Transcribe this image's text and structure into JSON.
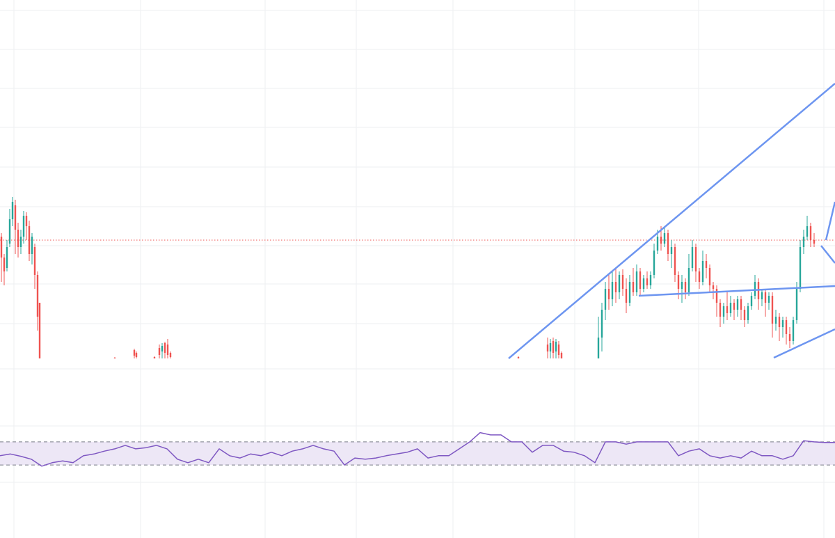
{
  "chart_data": [
    {
      "type": "candlestick",
      "x": [
        2,
        6,
        10,
        14,
        18,
        22,
        26,
        30,
        34,
        38,
        42,
        46,
        50,
        54,
        57,
        165,
        193,
        196,
        222,
        229,
        233,
        237,
        241,
        245,
        745,
        787,
        791,
        795,
        799,
        803,
        807,
        860,
        865,
        870,
        875,
        880,
        885,
        890,
        895,
        900,
        905,
        910,
        915,
        920,
        925,
        930,
        935,
        940,
        945,
        950,
        955,
        960,
        965,
        970,
        975,
        980,
        985,
        990,
        995,
        1000,
        1005,
        1010,
        1015,
        1020,
        1025,
        1030,
        1035,
        1040,
        1045,
        1050,
        1055,
        1060,
        1065,
        1070,
        1075,
        1080,
        1085,
        1090,
        1095,
        1100,
        1105,
        1110,
        1115,
        1120,
        1125,
        1130,
        1135,
        1140,
        1145,
        1150,
        1155,
        1160,
        1165,
        1170
      ],
      "open": [
        175,
        145,
        130,
        165,
        200,
        220,
        185,
        160,
        175,
        205,
        190,
        150,
        160,
        120,
        80,
        1,
        12,
        8,
        2,
        15,
        10,
        22,
        20,
        8,
        2,
        20,
        10,
        25,
        10,
        20,
        8,
        0,
        30,
        70,
        100,
        85,
        110,
        95,
        120,
        100,
        80,
        110,
        95,
        125,
        100,
        115,
        105,
        120,
        155,
        175,
        165,
        180,
        150,
        160,
        120,
        100,
        110,
        95,
        130,
        160,
        125,
        110,
        140,
        130,
        105,
        100,
        80,
        60,
        75,
        65,
        80,
        70,
        85,
        70,
        55,
        75,
        90,
        110,
        85,
        95,
        80,
        90,
        50,
        60,
        45,
        55,
        35,
        25,
        55,
        100,
        160,
        175,
        190,
        170
      ],
      "high": [
        180,
        150,
        170,
        215,
        232,
        228,
        195,
        185,
        212,
        210,
        198,
        180,
        165,
        125,
        80,
        2,
        14,
        10,
        3,
        20,
        22,
        24,
        28,
        10,
        3,
        30,
        28,
        30,
        28,
        25,
        10,
        60,
        80,
        110,
        120,
        125,
        130,
        125,
        128,
        115,
        120,
        130,
        135,
        130,
        120,
        125,
        125,
        165,
        185,
        190,
        190,
        185,
        170,
        165,
        125,
        120,
        115,
        150,
        170,
        165,
        130,
        155,
        150,
        135,
        110,
        105,
        85,
        80,
        95,
        90,
        85,
        90,
        90,
        75,
        80,
        95,
        120,
        115,
        100,
        100,
        95,
        95,
        70,
        65,
        60,
        60,
        45,
        60,
        110,
        170,
        185,
        205,
        195,
        180
      ],
      "low": [
        110,
        105,
        125,
        160,
        190,
        150,
        145,
        150,
        165,
        170,
        140,
        135,
        100,
        40,
        0,
        0,
        0,
        0,
        0,
        0,
        0,
        0,
        0,
        0,
        0,
        0,
        0,
        0,
        0,
        0,
        0,
        0,
        10,
        55,
        70,
        75,
        80,
        85,
        90,
        65,
        75,
        90,
        90,
        90,
        95,
        100,
        100,
        115,
        150,
        155,
        160,
        140,
        130,
        110,
        85,
        80,
        85,
        90,
        125,
        110,
        100,
        105,
        115,
        95,
        85,
        60,
        45,
        50,
        55,
        60,
        55,
        60,
        55,
        45,
        50,
        70,
        85,
        70,
        75,
        60,
        70,
        30,
        40,
        25,
        30,
        20,
        15,
        20,
        50,
        95,
        150,
        170,
        160,
        160
      ],
      "close": [
        145,
        125,
        160,
        200,
        225,
        185,
        160,
        175,
        205,
        190,
        150,
        175,
        120,
        60,
        0,
        0,
        4,
        2,
        0,
        5,
        18,
        8,
        5,
        2,
        0,
        10,
        22,
        8,
        24,
        5,
        0,
        30,
        70,
        100,
        85,
        110,
        95,
        120,
        100,
        80,
        110,
        95,
        125,
        100,
        115,
        105,
        120,
        155,
        175,
        165,
        180,
        150,
        160,
        120,
        100,
        110,
        95,
        130,
        160,
        125,
        110,
        140,
        130,
        105,
        100,
        80,
        60,
        75,
        65,
        80,
        70,
        85,
        70,
        55,
        75,
        90,
        110,
        85,
        95,
        80,
        90,
        50,
        60,
        45,
        55,
        35,
        25,
        55,
        100,
        160,
        175,
        190,
        170,
        165
      ],
      "xlim": [
        0,
        1200
      ],
      "ylim": [
        0,
        515
      ],
      "up_color": "#26a69a",
      "down_color": "#ef5350",
      "price_line": 170,
      "price_line_color": "#ef5350"
    },
    {
      "type": "line",
      "x": [
        0,
        15,
        30,
        45,
        60,
        75,
        90,
        105,
        120,
        135,
        150,
        165,
        180,
        195,
        210,
        225,
        240,
        255,
        270,
        285,
        300,
        315,
        330,
        345,
        360,
        375,
        390,
        405,
        420,
        435,
        450,
        465,
        480,
        495,
        510,
        525,
        540,
        555,
        570,
        585,
        600,
        615,
        630,
        645,
        660,
        675,
        690,
        705,
        720,
        735,
        750,
        765,
        780,
        795,
        810,
        825,
        840,
        855,
        870,
        885,
        900,
        915,
        930,
        945,
        960,
        975,
        990,
        1005,
        1020,
        1035,
        1050,
        1065,
        1080,
        1095,
        1110,
        1125,
        1140,
        1155,
        1170,
        1185,
        1200
      ],
      "values": [
        46,
        49,
        45,
        40,
        28,
        34,
        37,
        34,
        46,
        49,
        54,
        58,
        64,
        58,
        60,
        64,
        58,
        40,
        34,
        40,
        34,
        58,
        46,
        42,
        49,
        46,
        52,
        46,
        54,
        58,
        64,
        58,
        54,
        30,
        42,
        40,
        42,
        46,
        49,
        52,
        58,
        42,
        46,
        46,
        58,
        70,
        86,
        82,
        82,
        70,
        70,
        52,
        64,
        64,
        54,
        52,
        46,
        34,
        70,
        70,
        66,
        70,
        70,
        70,
        70,
        46,
        54,
        58,
        46,
        42,
        46,
        42,
        54,
        46,
        46,
        40,
        46,
        72,
        70,
        69,
        69
      ],
      "color": "#7e57c2",
      "xlim": [
        0,
        1200
      ],
      "ylim": [
        0,
        100
      ],
      "levels": [
        30,
        70
      ],
      "band_color": "#ede7f6"
    }
  ]
}
